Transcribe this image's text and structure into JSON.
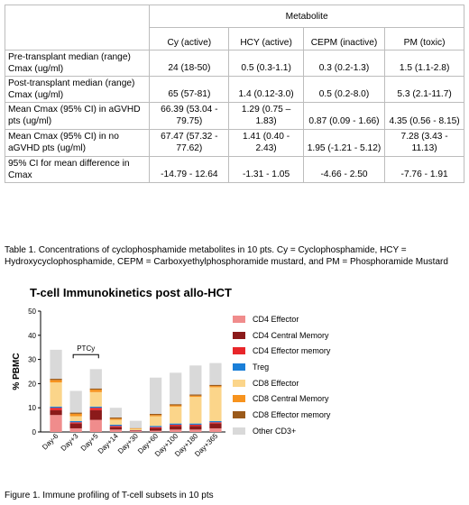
{
  "table": {
    "group_header": "Metabolite",
    "columns": [
      "Cy (active)",
      "HCY (active)",
      "CEPM (inactive)",
      "PM (toxic)"
    ],
    "rows": [
      {
        "label": "Pre-transplant median (range) Cmax (ug/ml)",
        "values": [
          "24 (18-50)",
          "0.5 (0.3-1.1)",
          "0.3 (0.2-1.3)",
          "1.5 (1.1-2.8)"
        ]
      },
      {
        "label": "Post-transplant median (range) Cmax (ug/ml)",
        "values": [
          "65 (57-81)",
          "1.4 (0.12-3.0)",
          "0.5 (0.2-8.0)",
          "5.3 (2.1-11.7)"
        ]
      },
      {
        "label": "Mean Cmax (95% CI) in aGVHD pts (ug/ml)",
        "values": [
          "66.39 (53.04 - 79.75)",
          "1.29 (0.75 – 1.83)",
          "0.87 (0.09 - 1.66)",
          "4.35 (0.56 - 8.15)"
        ]
      },
      {
        "label": "Mean Cmax (95% CI) in no aGVHD pts (ug/ml)",
        "values": [
          "67.47 (57.32 - 77.62)",
          "1.41 (0.40 - 2.43)",
          "1.95 (-1.21 - 5.12)",
          "7.28 (3.43 - 11.13)"
        ]
      },
      {
        "label": "95% CI for mean difference in Cmax",
        "values": [
          "-14.79 - 12.64",
          "-1.31 - 1.05",
          "-4.66 - 2.50",
          "-7.76 - 1.91"
        ]
      }
    ],
    "caption": "Table 1. Concentrations of cyclophosphamide metabolites in 10 pts. Cy = Cyclophosphamide, HCY = Hydroxycyclophosphamide, CEPM = Carboxyethylphosphoramide mustard, and PM = Phosphoramide Mustard"
  },
  "figure_caption": "Figure 1. Immune profiling of T-cell subsets in 10 pts",
  "chart_data": {
    "type": "bar",
    "stacked": true,
    "title": "T-cell Immunokinetics post allo-HCT",
    "xlabel": "",
    "ylabel": "% PBMC",
    "ylim": [
      0,
      50
    ],
    "yticks": [
      0,
      10,
      20,
      30,
      40,
      50
    ],
    "categories": [
      "Day-6",
      "Day+3",
      "Day+5",
      "Day+14",
      "Day+30",
      "Day+60",
      "Day+100",
      "Day+180",
      "Day+365"
    ],
    "annotation": {
      "text": "PTCy",
      "from": "Day+3",
      "to": "Day+5"
    },
    "legend_position": "right",
    "series": [
      {
        "name": "CD4 Effector",
        "color": "#f08c8c",
        "values": [
          7,
          1.5,
          5,
          1,
          0.3,
          0.5,
          1,
          1,
          1.5
        ]
      },
      {
        "name": "CD4 Central Memory",
        "color": "#8b1a1a",
        "values": [
          2,
          2,
          4,
          1,
          0.2,
          1,
          1.5,
          1.5,
          2
        ]
      },
      {
        "name": "CD4 Effector memory",
        "color": "#e8262a",
        "values": [
          1,
          0.5,
          1,
          0.5,
          0.2,
          0.5,
          0.5,
          0.5,
          0.5
        ]
      },
      {
        "name": "Treg",
        "color": "#1a7fd8",
        "values": [
          0.5,
          0.5,
          0.5,
          0.5,
          0.1,
          0.5,
          0.5,
          0.5,
          0.5
        ]
      },
      {
        "name": "CD8 Effector",
        "color": "#fbd58a",
        "values": [
          10,
          2,
          6,
          2,
          0.5,
          4,
          7,
          11,
          14
        ]
      },
      {
        "name": "CD8 Central Memory",
        "color": "#f7931e",
        "values": [
          1,
          1,
          1,
          0.5,
          0.2,
          0.5,
          0.5,
          0.5,
          0.5
        ]
      },
      {
        "name": "CD8 Effector memory",
        "color": "#9b5a1a",
        "values": [
          0.5,
          0.5,
          0.5,
          0.5,
          0.1,
          0.5,
          0.5,
          0.5,
          0.5
        ]
      },
      {
        "name": "Other CD3+",
        "color": "#d9d9d9",
        "values": [
          12,
          9,
          8,
          4,
          3,
          15,
          13,
          12,
          9
        ]
      }
    ]
  }
}
